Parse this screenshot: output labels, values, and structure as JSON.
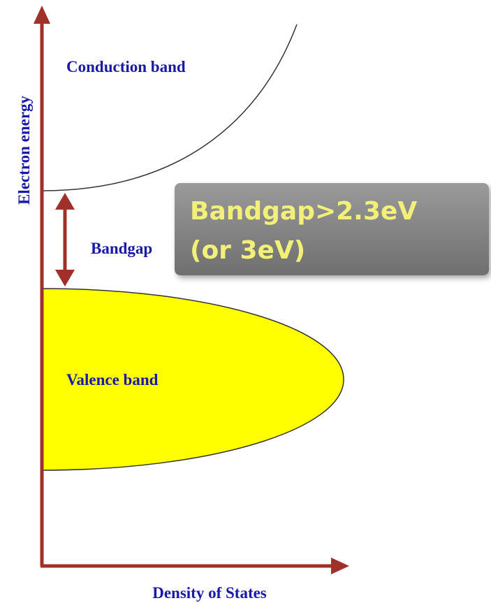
{
  "diagram": {
    "axis_labels": {
      "y": "Electron energy",
      "x": "Density of States"
    },
    "regions": {
      "conduction": "Conduction band",
      "gap": "Bandgap",
      "valence": "Valence band"
    },
    "callout": {
      "lines": [
        "Bandgap>2.3eV",
        "(or 3eV)"
      ]
    }
  }
}
